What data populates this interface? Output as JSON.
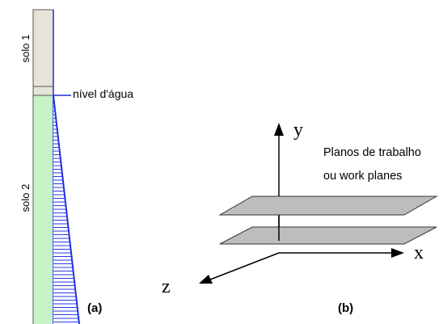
{
  "panel_a": {
    "layer_top_label": "solo 1",
    "layer_bottom_label": "solo 2",
    "water_level_label": "nível d'água",
    "panel_label": "(a)",
    "colors": {
      "solo_1": "#e6e3d7",
      "solo_2": "#c8f2c8",
      "pressure_line": "#1f2fdc",
      "hatch": "#2a3af0"
    }
  },
  "panel_b": {
    "axis_y_label": "y",
    "axis_x_label": "x",
    "axis_z_label": "z",
    "planes_label_line1": "Planos de trabalho",
    "planes_label_line2": "ou work planes",
    "panel_label": "(b)",
    "colors": {
      "plane_fill": "#bdbdbd",
      "axis": "#000000"
    }
  }
}
